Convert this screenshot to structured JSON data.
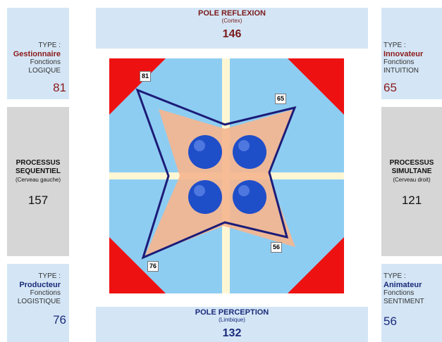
{
  "top_pole": {
    "title": "POLE REFLEXION",
    "subtitle": "(Cortex)",
    "value": "146"
  },
  "bottom_pole": {
    "title": "POLE PERCEPTION",
    "subtitle": "(Limbique)",
    "value": "132"
  },
  "left_process": {
    "title": "PROCESSUS SEQUENTIEL",
    "subtitle": "(Cerveau gauche)",
    "value": "157"
  },
  "right_process": {
    "title": "PROCESSUS SIMULTANE",
    "subtitle": "(Cerveau droit)",
    "value": "121"
  },
  "types": {
    "top_left": {
      "label": "TYPE :",
      "name": "Gestionnaire",
      "line1": "Fonctions",
      "line2": "LOGIQUE",
      "value": "81"
    },
    "top_right": {
      "label": "TYPE :",
      "name": "Innovateur",
      "line1": "Fonctions",
      "line2": "INTUITION",
      "value": "65"
    },
    "bottom_left": {
      "label": "TYPE :",
      "name": "Producteur",
      "line1": "Fonctions",
      "line2": "LOGISTIQUE",
      "value": "76"
    },
    "bottom_right": {
      "label": "TYPE :",
      "name": "Animateur",
      "line1": "Fonctions",
      "line2": "SENTIMENT",
      "value": "56"
    }
  },
  "diagram": {
    "point_labels": {
      "top_left": "81",
      "top_right": "65",
      "bottom_right": "56",
      "bottom_left": "76"
    },
    "colors": {
      "corner": "#ee1111",
      "sky": "#8ecdf2",
      "cross": "#fff7d4",
      "star": "#f5b690",
      "outline": "#1c1c78",
      "sphere": "#1f4ec9"
    }
  }
}
